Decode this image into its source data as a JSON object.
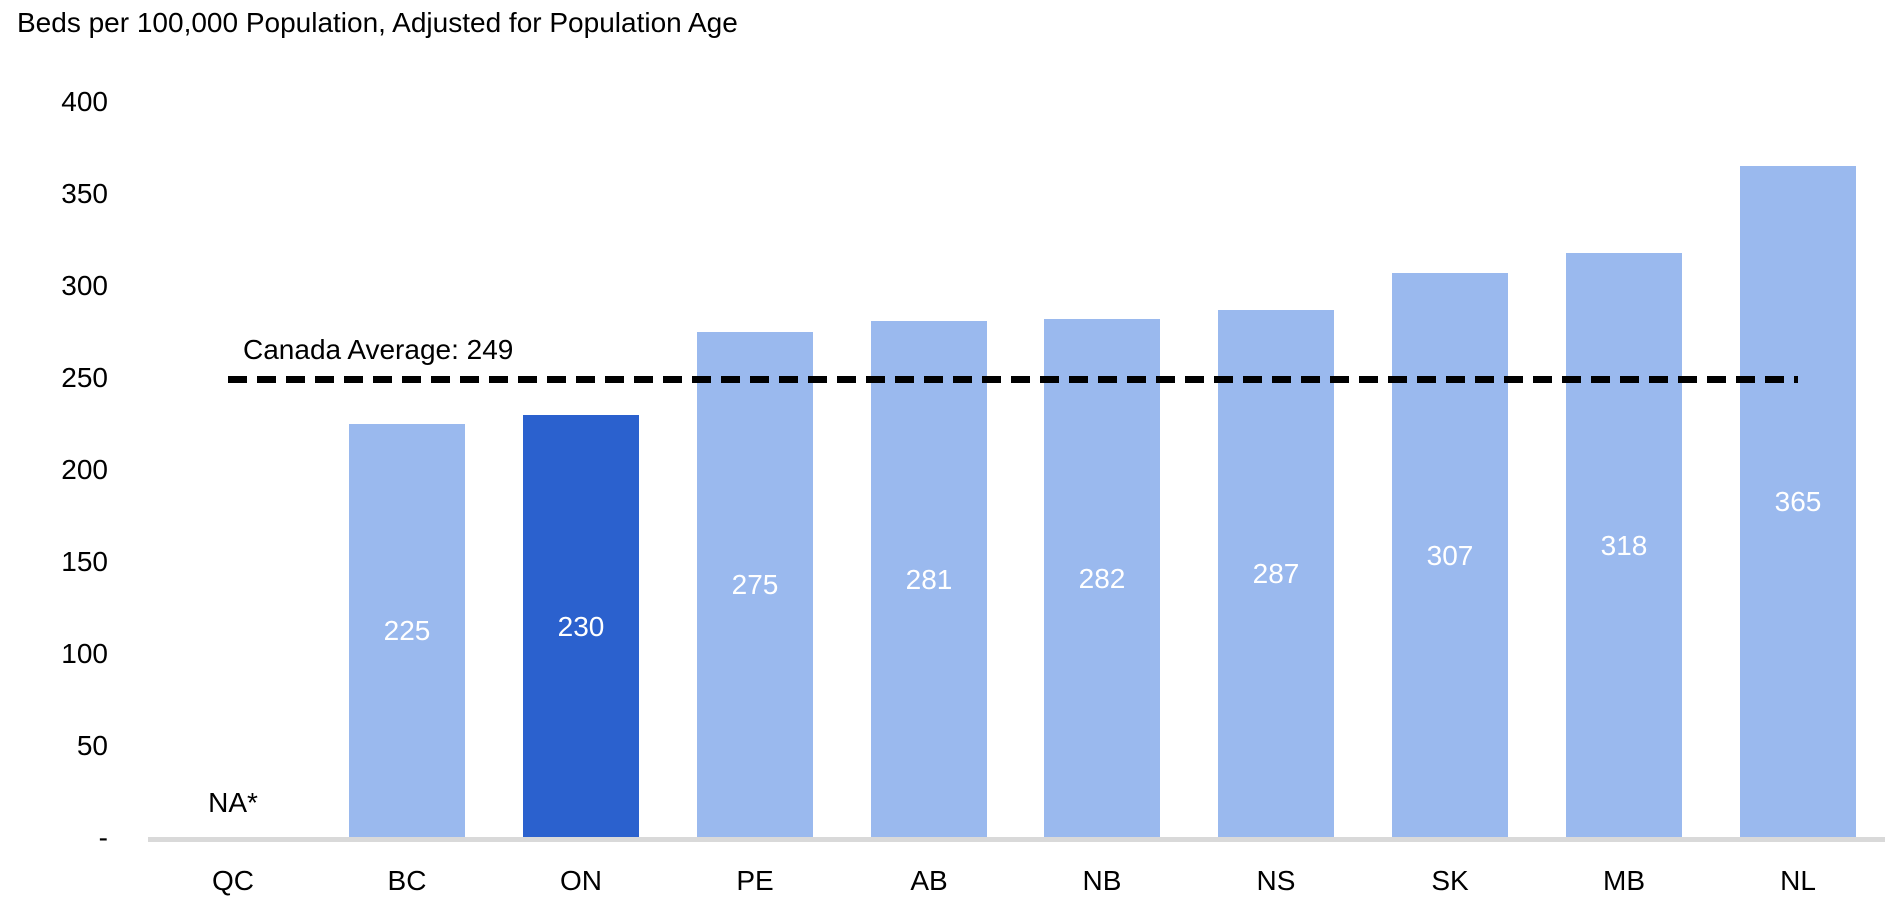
{
  "chart_data": {
    "type": "bar",
    "title": "Beds per 100,000 Population, Adjusted for Population Age",
    "categories": [
      "QC",
      "BC",
      "ON",
      "PE",
      "AB",
      "NB",
      "NS",
      "SK",
      "MB",
      "NL"
    ],
    "values": [
      null,
      225,
      230,
      275,
      281,
      282,
      287,
      307,
      318,
      365
    ],
    "data_labels": [
      "NA*",
      "225",
      "230",
      "275",
      "281",
      "282",
      "287",
      "307",
      "318",
      "365"
    ],
    "missing_label": "NA*",
    "highlight_category": "ON",
    "highlight_index": 2,
    "reference_line": {
      "value": 249,
      "label": "Canada Average: 249"
    },
    "y_ticks": [
      {
        "label": "400",
        "value": 400
      },
      {
        "label": "350",
        "value": 350
      },
      {
        "label": "300",
        "value": 300
      },
      {
        "label": "250",
        "value": 250
      },
      {
        "label": "200",
        "value": 200
      },
      {
        "label": "150",
        "value": 150
      },
      {
        "label": "100",
        "value": 100
      },
      {
        "label": "50",
        "value": 50
      },
      {
        "label": "-",
        "value": 0
      }
    ],
    "ylim": [
      0,
      400
    ],
    "grid": false,
    "legend": false,
    "colors": {
      "bar": "#9AB9EE",
      "bar_highlight": "#2B61CE",
      "value_label": "#FFFFFF",
      "axis_line": "#D9D9D9",
      "reference_line": "#000000",
      "text": "#000000"
    }
  }
}
